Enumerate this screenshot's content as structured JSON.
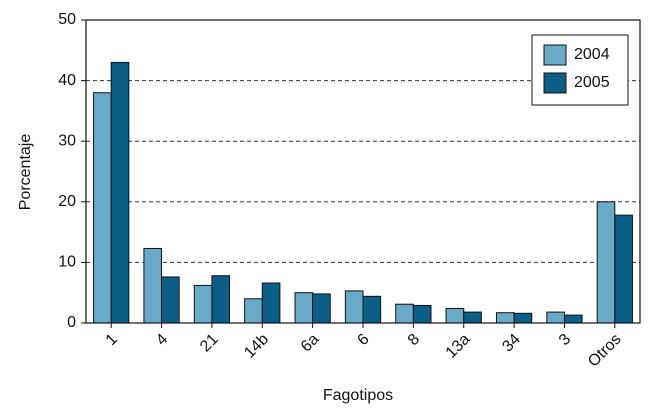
{
  "chart_data": {
    "type": "bar",
    "xlabel": "Fagotipos",
    "ylabel": "Porcentaje",
    "categories": [
      "1",
      "4",
      "21",
      "14b",
      "6a",
      "6",
      "8",
      "13a",
      "34",
      "3",
      "Otros"
    ],
    "series": [
      {
        "name": "2004",
        "color": "#6aaac9",
        "values": [
          38,
          12.3,
          6.2,
          4,
          5,
          5.3,
          3.1,
          2.4,
          1.7,
          1.8,
          20
        ]
      },
      {
        "name": "2005",
        "color": "#0b5f87",
        "values": [
          43,
          7.6,
          7.8,
          6.6,
          4.8,
          4.4,
          2.9,
          1.8,
          1.6,
          1.3,
          17.8
        ]
      }
    ],
    "ylim": [
      0,
      50
    ],
    "yticks": [
      0,
      10,
      20,
      30,
      40,
      50
    ],
    "grid": true,
    "legend": "upper right"
  }
}
